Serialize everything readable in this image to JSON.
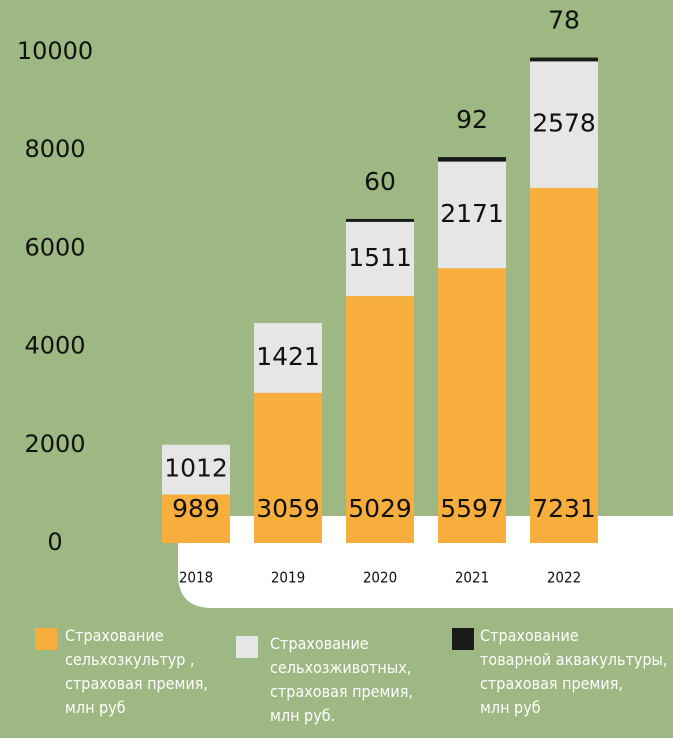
{
  "chart_data": {
    "type": "stacked_bar",
    "categories": [
      "2018",
      "2019",
      "2020",
      "2021",
      "2022"
    ],
    "series": [
      {
        "name": "Страхование\nсельхозкультур ,\nстраховая премия,\nмлн руб",
        "color": "#f8ae3c",
        "values": [
          989,
          3059,
          5029,
          5597,
          7231
        ]
      },
      {
        "name": "Страхование\nсельхозживотных,\nстраховая премия,\nмлн руб.",
        "color": "#e6e6e6",
        "values": [
          1012,
          1421,
          1511,
          2171,
          2578
        ]
      },
      {
        "name": "Страхование\nтоварной аквакультуры,\nстраховая премия,\nмлн руб",
        "color": "#1a1a1a",
        "values": [
          null,
          null,
          60,
          92,
          78
        ]
      }
    ],
    "ylim": [
      0,
      10000
    ],
    "yticks": [
      0,
      2000,
      4000,
      6000,
      8000,
      10000
    ],
    "grid": false
  }
}
